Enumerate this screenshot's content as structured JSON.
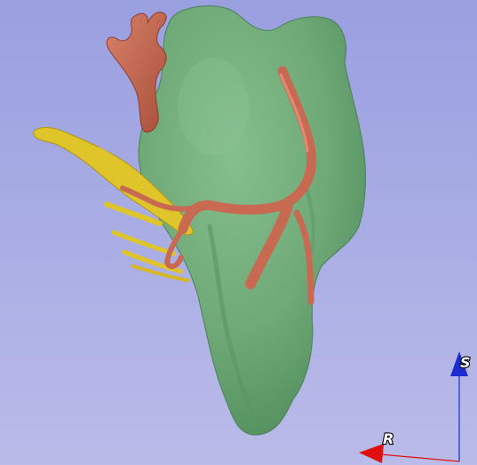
{
  "viewer": {
    "background_top": "#9a9fe0",
    "background_bottom": "#b9bbe8",
    "organ_color": "#6fa978",
    "artery_color": "#c86a52",
    "nerve_color": "#e0c52a"
  },
  "orientation_marker": {
    "superior_label": "S",
    "right_label": "R",
    "superior_color": "#1a2bd0",
    "right_color": "#e01010"
  }
}
